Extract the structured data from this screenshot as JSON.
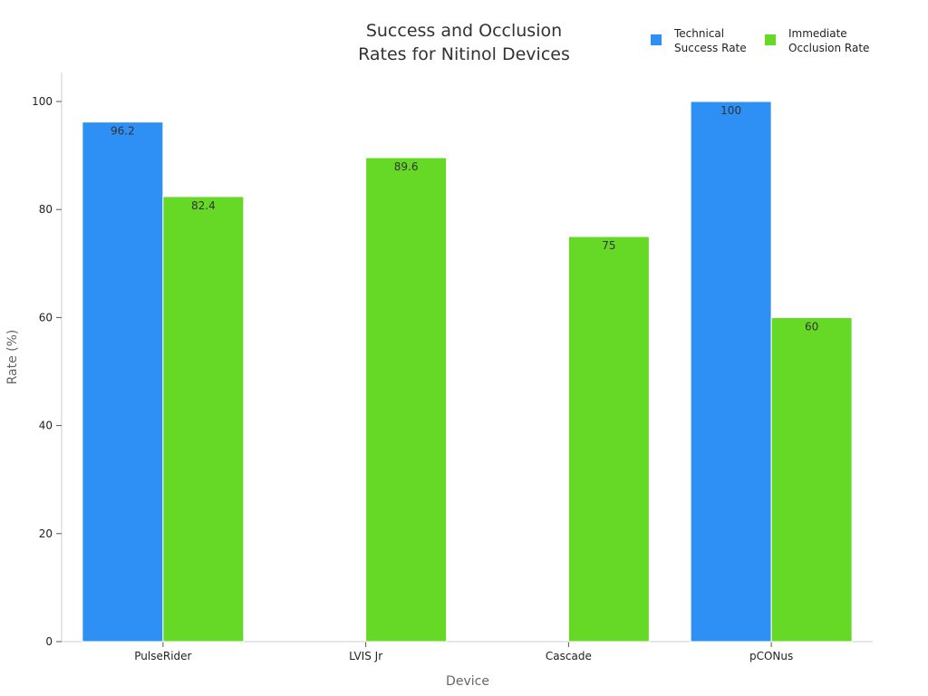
{
  "chart_data": {
    "type": "bar",
    "title": [
      "Success and Occlusion",
      "Rates for Nitinol Devices"
    ],
    "xlabel": "Device",
    "ylabel": "Rate (%)",
    "categories": [
      "PulseRider",
      "LVIS Jr",
      "Cascade",
      "pCONus"
    ],
    "series": [
      {
        "name": [
          "Technical",
          "Success Rate"
        ],
        "color": "#2e90f5",
        "values": [
          96.2,
          null,
          null,
          100
        ]
      },
      {
        "name": [
          "Immediate",
          "Occlusion Rate"
        ],
        "color": "#66d926",
        "values": [
          82.4,
          89.6,
          75,
          60
        ]
      }
    ],
    "ylim": [
      0,
      105
    ],
    "yticks": [
      0,
      20,
      40,
      60,
      80,
      100
    ],
    "grid": false,
    "legend_position": "top-right"
  }
}
